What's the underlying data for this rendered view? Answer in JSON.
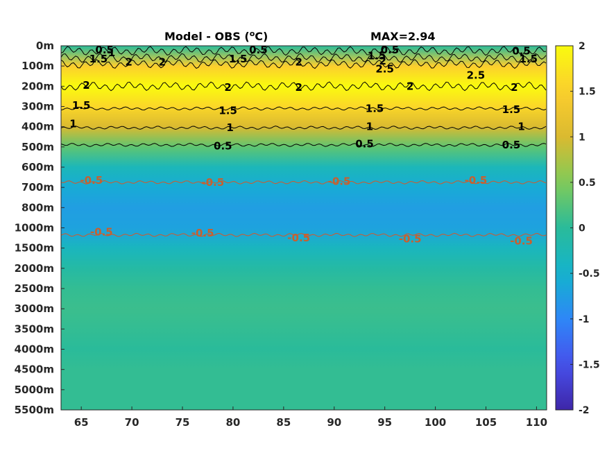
{
  "chart_data": {
    "type": "heatmap",
    "title": "Model - OBS (",
    "title_unit_sup": "o",
    "title_unit_tail": "C)",
    "max_label": "MAX=2.94",
    "xlabel": "",
    "ylabel": "",
    "xlim": [
      63,
      111
    ],
    "x_ticks": [
      65,
      70,
      75,
      80,
      85,
      90,
      95,
      100,
      105,
      110
    ],
    "y_tick_labels": [
      "0m",
      "100m",
      "200m",
      "300m",
      "400m",
      "500m",
      "600m",
      "700m",
      "800m",
      "1000m",
      "1500m",
      "2000m",
      "2500m",
      "3000m",
      "3500m",
      "4000m",
      "4500m",
      "5000m",
      "5500m"
    ],
    "colorbar": {
      "range": [
        -2,
        2
      ],
      "ticks": [
        "2",
        "1.5",
        "1",
        "0.5",
        "0",
        "-0.5",
        "-1",
        "-1.5",
        "-2"
      ],
      "colormap": "parula"
    },
    "profile_depth_labels": [
      "0m",
      "100m",
      "200m",
      "300m",
      "400m",
      "500m",
      "600m",
      "700m",
      "800m",
      "1000m",
      "1500m",
      "2000m",
      "2500m",
      "3000m",
      "3500m",
      "4000m",
      "4500m",
      "5000m",
      "5500m"
    ],
    "profile_values": [
      0.0,
      1.5,
      2.2,
      1.6,
      1.0,
      0.3,
      -0.3,
      -0.6,
      -0.75,
      -0.7,
      -0.35,
      -0.1,
      0.05,
      0.1,
      0.05,
      0.0,
      0.05,
      0.05,
      0.05
    ],
    "contours": [
      {
        "level": "0.5",
        "depth_index": 0.25,
        "color": "#000000"
      },
      {
        "level": "1.5",
        "depth_index": 0.6,
        "color": "#000000"
      },
      {
        "level": "2",
        "depth_index": 0.9,
        "color": "#000000"
      },
      {
        "level": "2",
        "depth_index": 2.0,
        "color": "#000000"
      },
      {
        "level": "1.5",
        "depth_index": 3.1,
        "color": "#000000"
      },
      {
        "level": "1",
        "depth_index": 4.05,
        "color": "#000000"
      },
      {
        "level": "0.5",
        "depth_index": 4.9,
        "color": "#000000"
      },
      {
        "level": "-0.5",
        "depth_index": 6.75,
        "color": "#d4572a"
      },
      {
        "level": "-0.5",
        "depth_index": 9.35,
        "color": "#d4572a"
      }
    ],
    "contour_labels": [
      {
        "text": "0.5",
        "x": 67.3,
        "d": 0.2
      },
      {
        "text": "1.5",
        "x": 66.7,
        "d": 0.65
      },
      {
        "text": "1",
        "x": 68.0,
        "d": 0.35
      },
      {
        "text": "2",
        "x": 69.7,
        "d": 0.8
      },
      {
        "text": "2",
        "x": 73.0,
        "d": 0.8
      },
      {
        "text": "0.5",
        "x": 82.5,
        "d": 0.2
      },
      {
        "text": "1.5",
        "x": 80.5,
        "d": 0.65
      },
      {
        "text": "2",
        "x": 86.5,
        "d": 0.8
      },
      {
        "text": "0.5",
        "x": 95.5,
        "d": 0.2
      },
      {
        "text": "1.5",
        "x": 94.2,
        "d": 0.5
      },
      {
        "text": "2",
        "x": 94.8,
        "d": 0.75
      },
      {
        "text": "2.5",
        "x": 95.0,
        "d": 1.15
      },
      {
        "text": "2.5",
        "x": 104.0,
        "d": 1.45
      },
      {
        "text": "0.5",
        "x": 108.5,
        "d": 0.25
      },
      {
        "text": "1.5",
        "x": 109.2,
        "d": 0.65
      },
      {
        "text": "2",
        "x": 65.5,
        "d": 1.95
      },
      {
        "text": "2",
        "x": 79.5,
        "d": 2.05
      },
      {
        "text": "2",
        "x": 86.5,
        "d": 2.05
      },
      {
        "text": "2",
        "x": 97.5,
        "d": 2.0
      },
      {
        "text": "2",
        "x": 107.8,
        "d": 2.05
      },
      {
        "text": "1.5",
        "x": 65.0,
        "d": 2.95
      },
      {
        "text": "1.5",
        "x": 79.5,
        "d": 3.2
      },
      {
        "text": "1.5",
        "x": 94.0,
        "d": 3.1
      },
      {
        "text": "1.5",
        "x": 107.5,
        "d": 3.15
      },
      {
        "text": "1",
        "x": 64.2,
        "d": 3.85
      },
      {
        "text": "1",
        "x": 79.7,
        "d": 4.05
      },
      {
        "text": "1",
        "x": 93.5,
        "d": 4.0
      },
      {
        "text": "1",
        "x": 108.5,
        "d": 4.0
      },
      {
        "text": "0.5",
        "x": 79.0,
        "d": 4.95
      },
      {
        "text": "0.5",
        "x": 93.0,
        "d": 4.85
      },
      {
        "text": "0.5",
        "x": 107.5,
        "d": 4.9
      },
      {
        "text": "-0.5",
        "x": 66.0,
        "d": 6.65
      },
      {
        "text": "-0.5",
        "x": 78.0,
        "d": 6.75
      },
      {
        "text": "-0.5",
        "x": 90.5,
        "d": 6.7
      },
      {
        "text": "-0.5",
        "x": 104.0,
        "d": 6.65
      },
      {
        "text": "-0.5",
        "x": 67.0,
        "d": 9.2
      },
      {
        "text": "-0.5",
        "x": 77.0,
        "d": 9.25
      },
      {
        "text": "-0.5",
        "x": 86.5,
        "d": 9.5
      },
      {
        "text": "-0.5",
        "x": 97.5,
        "d": 9.55
      },
      {
        "text": "-0.5",
        "x": 108.5,
        "d": 9.65
      }
    ]
  }
}
